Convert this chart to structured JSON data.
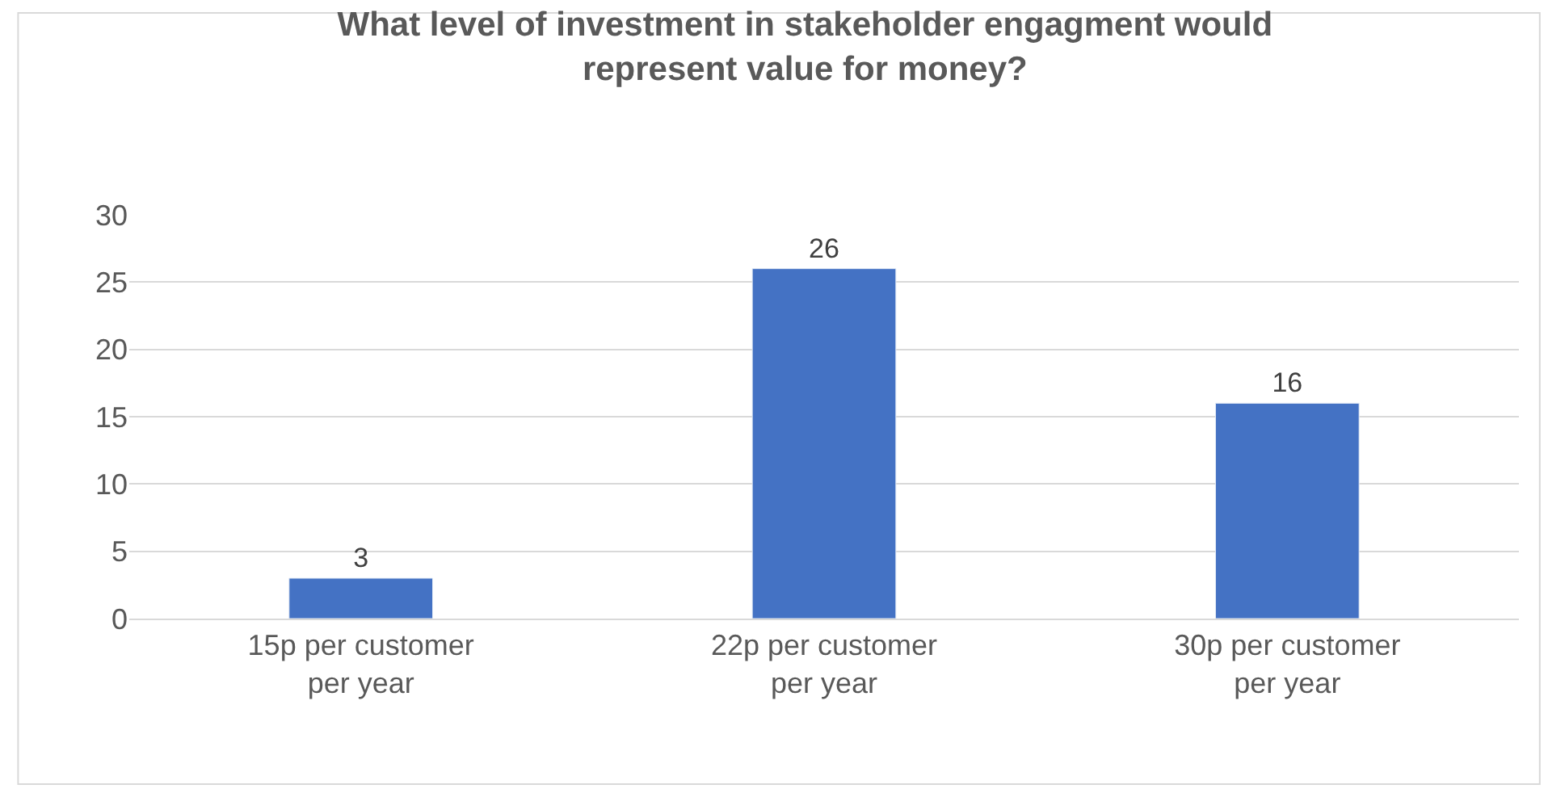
{
  "chart_data": {
    "type": "bar",
    "title": "What level of investment in stakeholder engagment would represent value for money?",
    "categories": [
      "15p per customer per year",
      "22p per customer per year",
      "30p per customer per year"
    ],
    "values": [
      3,
      26,
      16
    ],
    "color": "#4472c4",
    "ylim": [
      0,
      30
    ],
    "yticks": [
      0,
      5,
      10,
      15,
      20,
      25,
      30
    ],
    "grid": "y",
    "data_labels": true,
    "legend": false
  }
}
